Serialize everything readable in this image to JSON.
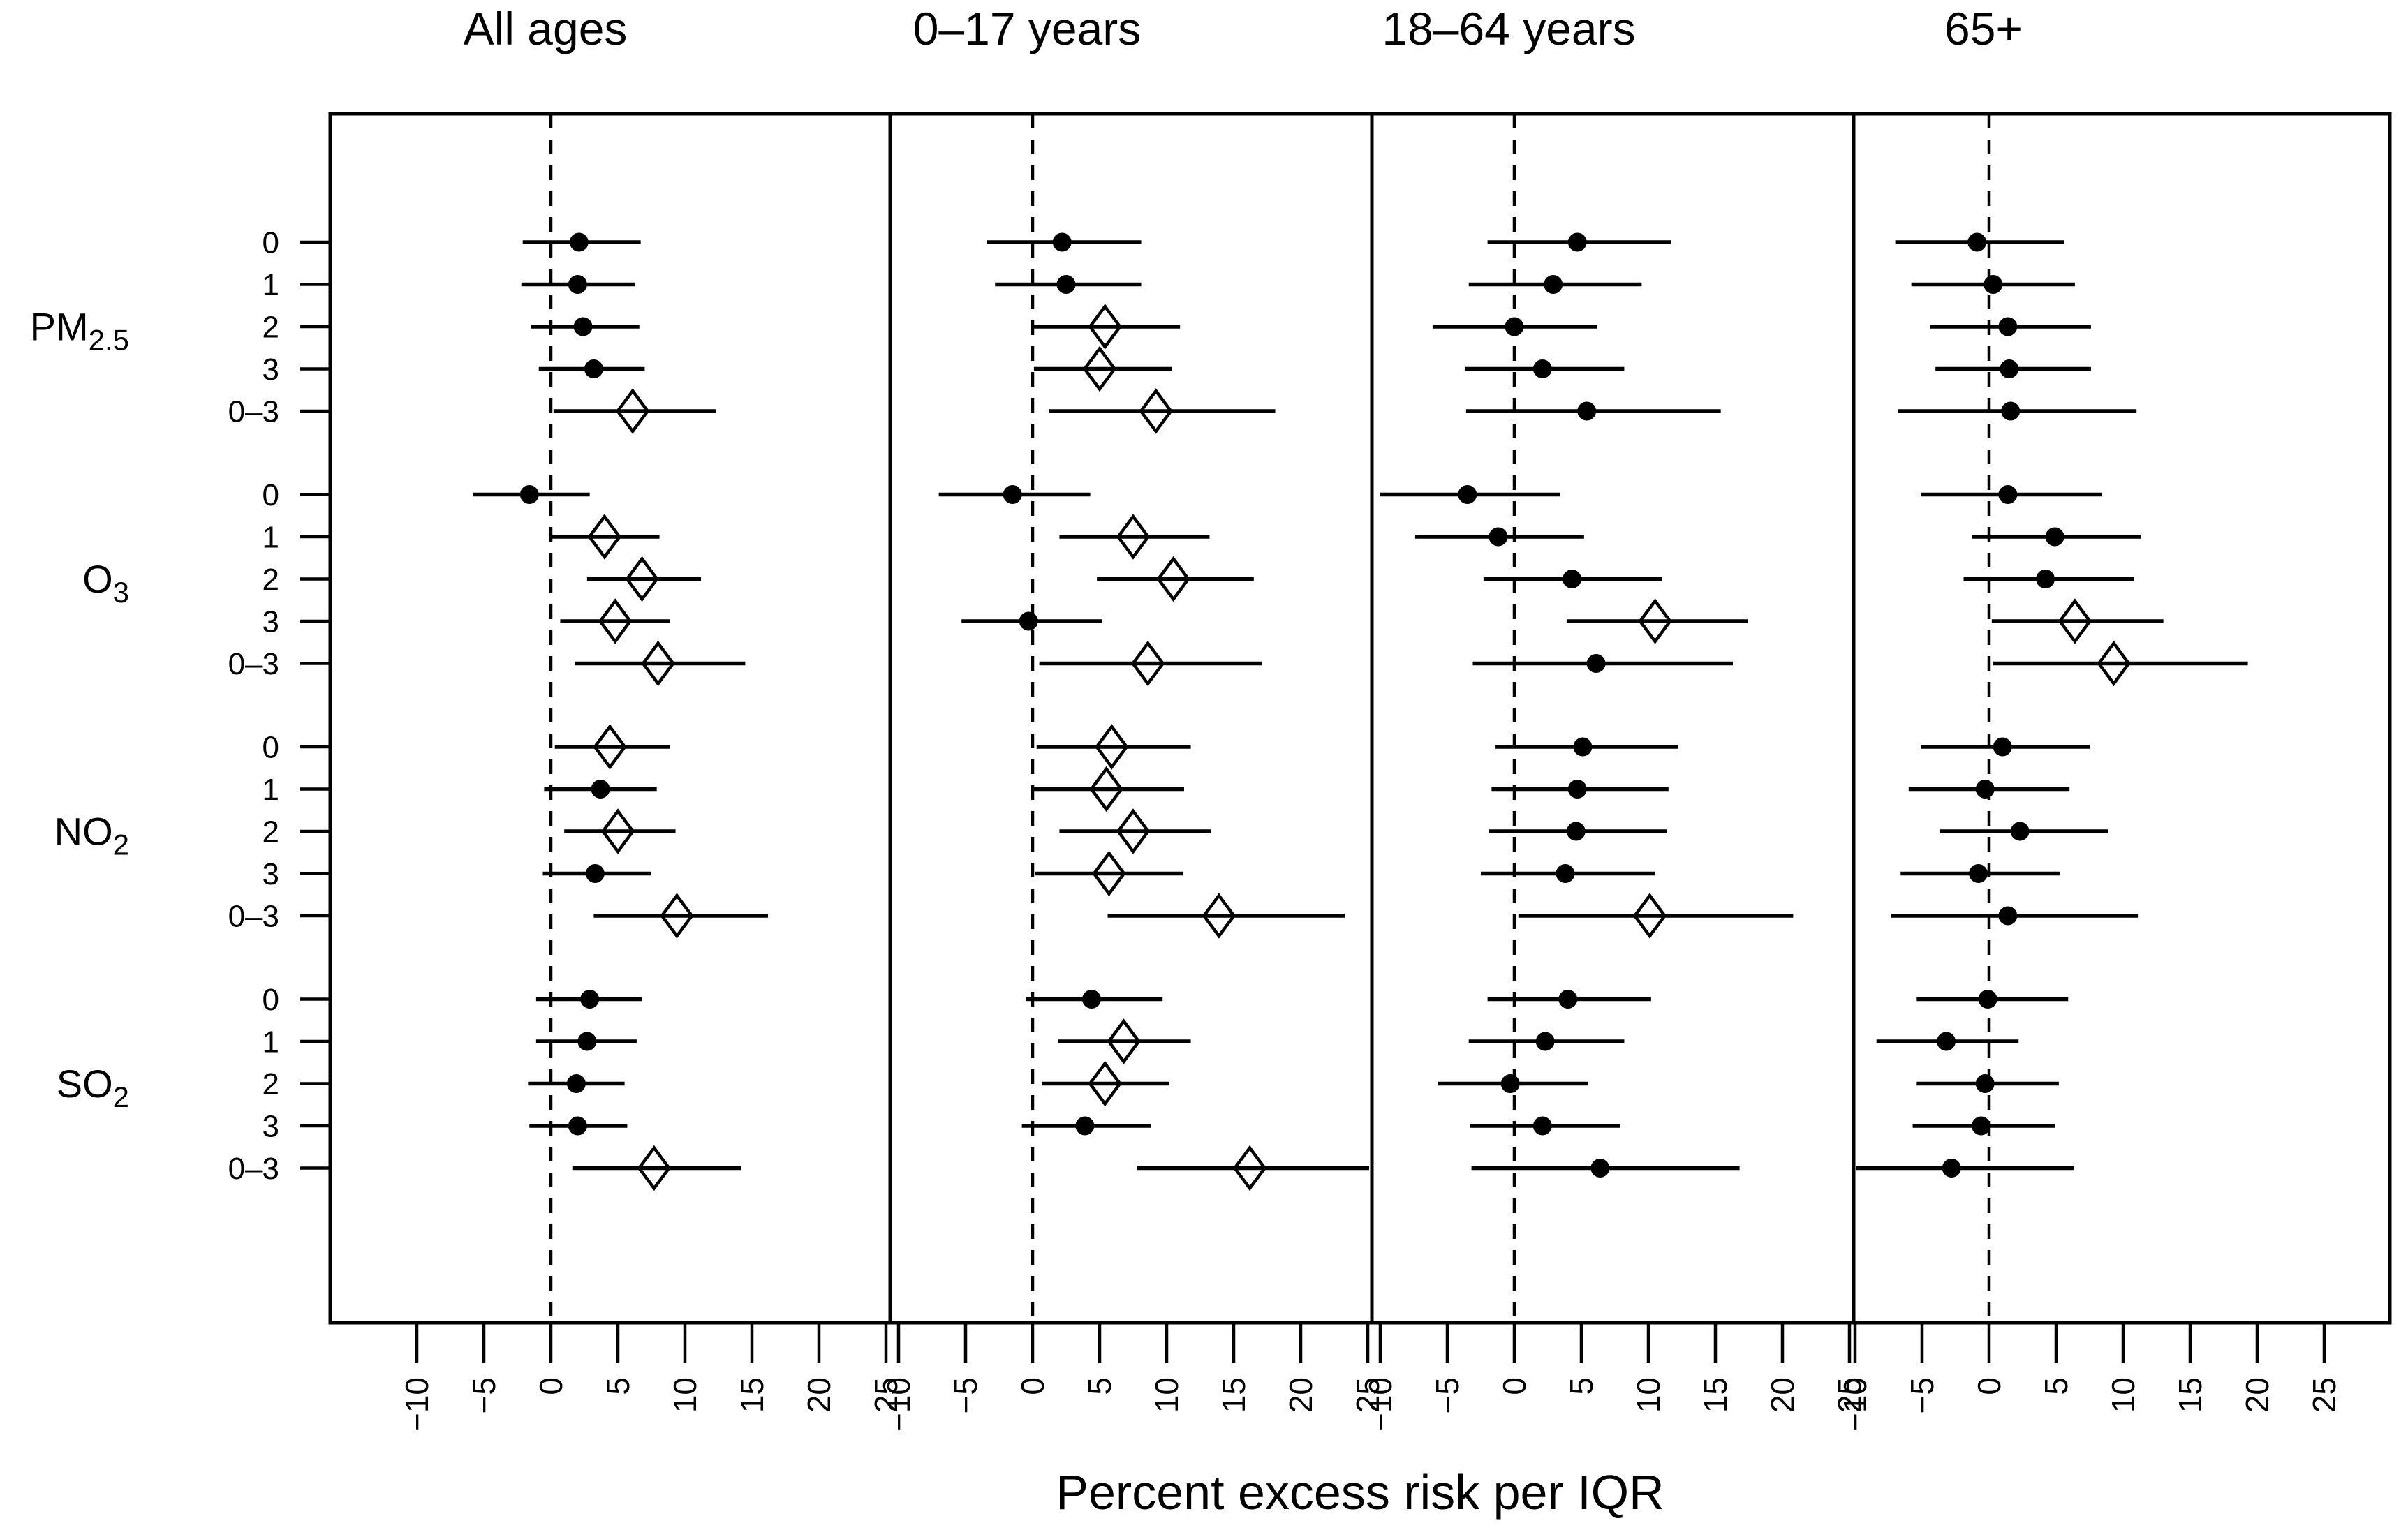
{
  "chart_data": {
    "type": "forest",
    "xlabel": "Percent excess risk per IQR",
    "x_ticks": [
      -10,
      -5,
      0,
      5,
      10,
      15,
      20,
      25
    ],
    "x_tick_labels": [
      "−10",
      "−5",
      "0",
      "5",
      "10",
      "15",
      "20",
      "25"
    ],
    "x_range_note": "same x scale in every panel, dashed reference line at 0",
    "reference_line": 0,
    "grid": false,
    "legend_position": "none",
    "marker_semantics": {
      "filled_circle": "estimate with CI crossing 0",
      "open_diamond": "estimate with CI excluding 0"
    },
    "group_labels": [
      {
        "text": "PM",
        "sub": "2.5"
      },
      {
        "text": "O",
        "sub": "3"
      },
      {
        "text": "NO",
        "sub": "2"
      },
      {
        "text": "SO",
        "sub": "2"
      }
    ],
    "lags": [
      "0",
      "1",
      "2",
      "3",
      "0–3"
    ],
    "panels": [
      {
        "title": "All ages",
        "rows": [
          {
            "group": "PM2.5",
            "lag": "0",
            "est": 2.1,
            "lo": -2.1,
            "hi": 6.7,
            "sig": false
          },
          {
            "group": "PM2.5",
            "lag": "1",
            "est": 2.0,
            "lo": -2.2,
            "hi": 6.3,
            "sig": false
          },
          {
            "group": "PM2.5",
            "lag": "2",
            "est": 2.4,
            "lo": -1.5,
            "hi": 6.6,
            "sig": false
          },
          {
            "group": "PM2.5",
            "lag": "3",
            "est": 3.2,
            "lo": -0.9,
            "hi": 7.0,
            "sig": false
          },
          {
            "group": "PM2.5",
            "lag": "0–3",
            "est": 6.1,
            "lo": 0.2,
            "hi": 12.3,
            "sig": true
          },
          {
            "group": "O3",
            "lag": "0",
            "est": -1.6,
            "lo": -5.8,
            "hi": 2.9,
            "sig": false
          },
          {
            "group": "O3",
            "lag": "1",
            "est": 4.0,
            "lo": 0.1,
            "hi": 8.1,
            "sig": true
          },
          {
            "group": "O3",
            "lag": "2",
            "est": 6.8,
            "lo": 2.7,
            "hi": 11.2,
            "sig": true
          },
          {
            "group": "O3",
            "lag": "3",
            "est": 4.8,
            "lo": 0.7,
            "hi": 8.9,
            "sig": true
          },
          {
            "group": "O3",
            "lag": "0–3",
            "est": 8.0,
            "lo": 1.8,
            "hi": 14.5,
            "sig": true
          },
          {
            "group": "NO2",
            "lag": "0",
            "est": 4.4,
            "lo": 0.3,
            "hi": 8.9,
            "sig": true
          },
          {
            "group": "NO2",
            "lag": "1",
            "est": 3.7,
            "lo": -0.5,
            "hi": 7.9,
            "sig": false
          },
          {
            "group": "NO2",
            "lag": "2",
            "est": 5.0,
            "lo": 1.0,
            "hi": 9.3,
            "sig": true
          },
          {
            "group": "NO2",
            "lag": "3",
            "est": 3.3,
            "lo": -0.6,
            "hi": 7.5,
            "sig": false
          },
          {
            "group": "NO2",
            "lag": "0–3",
            "est": 9.4,
            "lo": 3.2,
            "hi": 16.2,
            "sig": true
          },
          {
            "group": "SO2",
            "lag": "0",
            "est": 2.9,
            "lo": -1.1,
            "hi": 6.8,
            "sig": false
          },
          {
            "group": "SO2",
            "lag": "1",
            "est": 2.7,
            "lo": -1.1,
            "hi": 6.4,
            "sig": false
          },
          {
            "group": "SO2",
            "lag": "2",
            "est": 1.9,
            "lo": -1.7,
            "hi": 5.5,
            "sig": false
          },
          {
            "group": "SO2",
            "lag": "3",
            "est": 2.0,
            "lo": -1.6,
            "hi": 5.7,
            "sig": false
          },
          {
            "group": "SO2",
            "lag": "0–3",
            "est": 7.7,
            "lo": 1.6,
            "hi": 14.2,
            "sig": true
          }
        ]
      },
      {
        "title": "0–17 years",
        "rows": [
          {
            "group": "PM2.5",
            "lag": "0",
            "est": 2.2,
            "lo": -3.4,
            "hi": 8.1,
            "sig": false
          },
          {
            "group": "PM2.5",
            "lag": "1",
            "est": 2.5,
            "lo": -2.8,
            "hi": 8.1,
            "sig": false
          },
          {
            "group": "PM2.5",
            "lag": "2",
            "est": 5.4,
            "lo": 0.1,
            "hi": 11.0,
            "sig": true
          },
          {
            "group": "PM2.5",
            "lag": "3",
            "est": 5.0,
            "lo": 0.1,
            "hi": 10.4,
            "sig": true
          },
          {
            "group": "PM2.5",
            "lag": "0–3",
            "est": 9.2,
            "lo": 1.2,
            "hi": 18.1,
            "sig": true
          },
          {
            "group": "O3",
            "lag": "0",
            "est": -1.5,
            "lo": -7.0,
            "hi": 4.3,
            "sig": false
          },
          {
            "group": "O3",
            "lag": "1",
            "est": 7.5,
            "lo": 2.0,
            "hi": 13.2,
            "sig": true
          },
          {
            "group": "O3",
            "lag": "2",
            "est": 10.5,
            "lo": 4.8,
            "hi": 16.5,
            "sig": true
          },
          {
            "group": "O3",
            "lag": "3",
            "est": -0.3,
            "lo": -5.3,
            "hi": 5.2,
            "sig": false
          },
          {
            "group": "O3",
            "lag": "0–3",
            "est": 8.6,
            "lo": 0.5,
            "hi": 17.1,
            "sig": true
          },
          {
            "group": "NO2",
            "lag": "0",
            "est": 5.9,
            "lo": 0.3,
            "hi": 11.8,
            "sig": true
          },
          {
            "group": "NO2",
            "lag": "1",
            "est": 5.5,
            "lo": 0.1,
            "hi": 11.3,
            "sig": true
          },
          {
            "group": "NO2",
            "lag": "2",
            "est": 7.5,
            "lo": 2.0,
            "hi": 13.3,
            "sig": true
          },
          {
            "group": "NO2",
            "lag": "3",
            "est": 5.7,
            "lo": 0.2,
            "hi": 11.2,
            "sig": true
          },
          {
            "group": "NO2",
            "lag": "0–3",
            "est": 13.9,
            "lo": 5.6,
            "hi": 23.3,
            "sig": true
          },
          {
            "group": "SO2",
            "lag": "0",
            "est": 4.4,
            "lo": -0.5,
            "hi": 9.7,
            "sig": false
          },
          {
            "group": "SO2",
            "lag": "1",
            "est": 6.8,
            "lo": 1.9,
            "hi": 11.8,
            "sig": true
          },
          {
            "group": "SO2",
            "lag": "2",
            "est": 5.4,
            "lo": 0.7,
            "hi": 10.2,
            "sig": true
          },
          {
            "group": "SO2",
            "lag": "3",
            "est": 3.9,
            "lo": -0.8,
            "hi": 8.8,
            "sig": false
          },
          {
            "group": "SO2",
            "lag": "0–3",
            "est": 16.2,
            "lo": 7.8,
            "hi": 25.2,
            "sig": true
          }
        ]
      },
      {
        "title": "18–64 years",
        "rows": [
          {
            "group": "PM2.5",
            "lag": "0",
            "est": 4.7,
            "lo": -2.0,
            "hi": 11.7,
            "sig": false
          },
          {
            "group": "PM2.5",
            "lag": "1",
            "est": 2.9,
            "lo": -3.4,
            "hi": 9.5,
            "sig": false
          },
          {
            "group": "PM2.5",
            "lag": "2",
            "est": 0.0,
            "lo": -6.1,
            "hi": 6.2,
            "sig": false
          },
          {
            "group": "PM2.5",
            "lag": "3",
            "est": 2.1,
            "lo": -3.7,
            "hi": 8.2,
            "sig": false
          },
          {
            "group": "PM2.5",
            "lag": "0–3",
            "est": 5.4,
            "lo": -3.6,
            "hi": 15.4,
            "sig": false
          },
          {
            "group": "O3",
            "lag": "0",
            "est": -3.5,
            "lo": -10.0,
            "hi": 3.4,
            "sig": false
          },
          {
            "group": "O3",
            "lag": "1",
            "est": -1.2,
            "lo": -7.4,
            "hi": 5.2,
            "sig": false
          },
          {
            "group": "O3",
            "lag": "2",
            "est": 4.3,
            "lo": -2.3,
            "hi": 11.0,
            "sig": false
          },
          {
            "group": "O3",
            "lag": "3",
            "est": 10.5,
            "lo": 3.9,
            "hi": 17.4,
            "sig": true
          },
          {
            "group": "O3",
            "lag": "0–3",
            "est": 6.1,
            "lo": -3.1,
            "hi": 16.3,
            "sig": false
          },
          {
            "group": "NO2",
            "lag": "0",
            "est": 5.1,
            "lo": -1.4,
            "hi": 12.2,
            "sig": false
          },
          {
            "group": "NO2",
            "lag": "1",
            "est": 4.7,
            "lo": -1.7,
            "hi": 11.5,
            "sig": false
          },
          {
            "group": "NO2",
            "lag": "2",
            "est": 4.6,
            "lo": -1.9,
            "hi": 11.4,
            "sig": false
          },
          {
            "group": "NO2",
            "lag": "3",
            "est": 3.8,
            "lo": -2.5,
            "hi": 10.5,
            "sig": false
          },
          {
            "group": "NO2",
            "lag": "0–3",
            "est": 10.1,
            "lo": 0.3,
            "hi": 20.8,
            "sig": true
          },
          {
            "group": "SO2",
            "lag": "0",
            "est": 4.0,
            "lo": -2.0,
            "hi": 10.2,
            "sig": false
          },
          {
            "group": "SO2",
            "lag": "1",
            "est": 2.3,
            "lo": -3.4,
            "hi": 8.2,
            "sig": false
          },
          {
            "group": "SO2",
            "lag": "2",
            "est": -0.3,
            "lo": -5.7,
            "hi": 5.5,
            "sig": false
          },
          {
            "group": "SO2",
            "lag": "3",
            "est": 2.1,
            "lo": -3.3,
            "hi": 7.9,
            "sig": false
          },
          {
            "group": "SO2",
            "lag": "0–3",
            "est": 6.4,
            "lo": -3.2,
            "hi": 16.8,
            "sig": false
          }
        ]
      },
      {
        "title": "65+",
        "rows": [
          {
            "group": "PM2.5",
            "lag": "0",
            "est": -0.9,
            "lo": -7.0,
            "hi": 5.6,
            "sig": false
          },
          {
            "group": "PM2.5",
            "lag": "1",
            "est": 0.3,
            "lo": -5.8,
            "hi": 6.4,
            "sig": false
          },
          {
            "group": "PM2.5",
            "lag": "2",
            "est": 1.4,
            "lo": -4.4,
            "hi": 7.6,
            "sig": false
          },
          {
            "group": "PM2.5",
            "lag": "3",
            "est": 1.5,
            "lo": -4.0,
            "hi": 7.6,
            "sig": false
          },
          {
            "group": "PM2.5",
            "lag": "0–3",
            "est": 1.6,
            "lo": -6.8,
            "hi": 11.0,
            "sig": false
          },
          {
            "group": "O3",
            "lag": "0",
            "est": 1.4,
            "lo": -5.1,
            "hi": 8.4,
            "sig": false
          },
          {
            "group": "O3",
            "lag": "1",
            "est": 4.9,
            "lo": -1.3,
            "hi": 11.3,
            "sig": false
          },
          {
            "group": "O3",
            "lag": "2",
            "est": 4.2,
            "lo": -1.9,
            "hi": 10.8,
            "sig": false
          },
          {
            "group": "O3",
            "lag": "3",
            "est": 6.4,
            "lo": 0.2,
            "hi": 13.0,
            "sig": true
          },
          {
            "group": "O3",
            "lag": "0–3",
            "est": 9.3,
            "lo": 0.3,
            "hi": 19.3,
            "sig": true
          },
          {
            "group": "NO2",
            "lag": "0",
            "est": 1.0,
            "lo": -5.1,
            "hi": 7.5,
            "sig": false
          },
          {
            "group": "NO2",
            "lag": "1",
            "est": -0.3,
            "lo": -6.0,
            "hi": 6.0,
            "sig": false
          },
          {
            "group": "NO2",
            "lag": "2",
            "est": 2.3,
            "lo": -3.7,
            "hi": 8.9,
            "sig": false
          },
          {
            "group": "NO2",
            "lag": "3",
            "est": -0.8,
            "lo": -6.6,
            "hi": 5.3,
            "sig": false
          },
          {
            "group": "NO2",
            "lag": "0–3",
            "est": 1.4,
            "lo": -7.3,
            "hi": 11.1,
            "sig": false
          },
          {
            "group": "SO2",
            "lag": "0",
            "est": -0.1,
            "lo": -5.4,
            "hi": 5.9,
            "sig": false
          },
          {
            "group": "SO2",
            "lag": "1",
            "est": -3.2,
            "lo": -8.4,
            "hi": 2.2,
            "sig": false
          },
          {
            "group": "SO2",
            "lag": "2",
            "est": -0.3,
            "lo": -5.4,
            "hi": 5.2,
            "sig": false
          },
          {
            "group": "SO2",
            "lag": "3",
            "est": -0.6,
            "lo": -5.7,
            "hi": 4.9,
            "sig": false
          },
          {
            "group": "SO2",
            "lag": "0–3",
            "est": -2.8,
            "lo": -10.5,
            "hi": 6.3,
            "sig": false
          }
        ]
      }
    ]
  }
}
